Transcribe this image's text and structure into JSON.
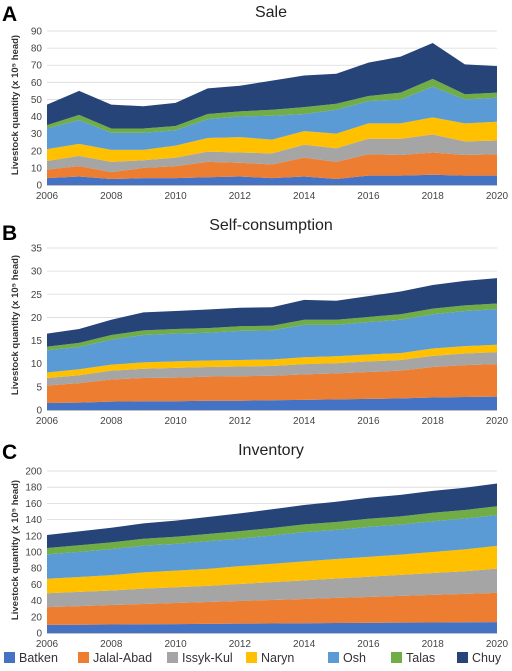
{
  "legend": [
    {
      "name": "Batken",
      "color": "#4472C4"
    },
    {
      "name": "Jalal-Abad",
      "color": "#ED7D31"
    },
    {
      "name": "Issyk-Kul",
      "color": "#A5A5A5"
    },
    {
      "name": "Naryn",
      "color": "#FFC000"
    },
    {
      "name": "Osh",
      "color": "#5B9BD5"
    },
    {
      "name": "Talas",
      "color": "#70AD47"
    },
    {
      "name": "Chuy",
      "color": "#264478"
    }
  ],
  "chart_data": [
    {
      "panel": "A",
      "type": "area",
      "stacked": true,
      "title": "Sale",
      "ylabel": "Livestock quantity (x 10⁵ head)",
      "ylim": [
        0,
        90
      ],
      "yticks": [
        0,
        10,
        20,
        30,
        40,
        50,
        60,
        70,
        80,
        90
      ],
      "xticks": [
        2006,
        2008,
        2010,
        2012,
        2014,
        2016,
        2018,
        2020
      ],
      "grid": true,
      "x": [
        2006,
        2007,
        2008,
        2009,
        2010,
        2011,
        2012,
        2013,
        2014,
        2015,
        2016,
        2017,
        2018,
        2019,
        2020
      ],
      "series": [
        {
          "name": "Batken",
          "values": [
            4,
            5,
            3.5,
            4,
            4,
            4.5,
            5,
            4,
            5,
            3.5,
            5.5,
            5.5,
            6,
            5.5,
            5.5
          ]
        },
        {
          "name": "Jalal-Abad",
          "values": [
            5,
            6,
            4,
            6,
            7,
            9,
            8,
            8,
            11,
            10,
            12.5,
            12,
            13,
            12,
            12.5
          ]
        },
        {
          "name": "Issyk-Kul",
          "values": [
            5,
            6,
            6,
            4.5,
            5,
            6,
            6,
            6.5,
            7.5,
            8,
            9,
            9.5,
            10.5,
            8,
            8
          ]
        },
        {
          "name": "Naryn",
          "values": [
            7,
            7,
            7,
            6,
            7,
            8,
            9,
            8,
            8,
            8.5,
            9,
            9,
            10,
            10.5,
            11
          ]
        },
        {
          "name": "Osh",
          "values": [
            12,
            14,
            10,
            10,
            9,
            11,
            12,
            14,
            10,
            14,
            13,
            14,
            18,
            14,
            14
          ]
        },
        {
          "name": "Talas",
          "values": [
            2,
            3,
            2.5,
            2.5,
            2.5,
            3,
            3,
            3.5,
            4,
            3.5,
            3,
            4,
            4.5,
            3,
            3
          ]
        },
        {
          "name": "Chuy",
          "values": [
            12,
            14,
            14,
            13,
            13.5,
            15,
            15,
            17,
            18.5,
            17.5,
            19.5,
            21,
            21,
            17.5,
            15.5
          ]
        }
      ]
    },
    {
      "panel": "B",
      "type": "area",
      "stacked": true,
      "title": "Self-consumption",
      "ylabel": "Livestock quantity (x 10⁵ head)",
      "ylim": [
        0,
        35
      ],
      "yticks": [
        0,
        5,
        10,
        15,
        20,
        25,
        30,
        35
      ],
      "xticks": [
        2006,
        2008,
        2010,
        2012,
        2014,
        2016,
        2018,
        2020
      ],
      "grid": true,
      "x": [
        2006,
        2007,
        2008,
        2009,
        2010,
        2011,
        2012,
        2013,
        2014,
        2015,
        2016,
        2017,
        2018,
        2019,
        2020
      ],
      "series": [
        {
          "name": "Batken",
          "values": [
            1.5,
            1.6,
            1.8,
            1.9,
            1.9,
            2.0,
            2.0,
            2.1,
            2.2,
            2.3,
            2.4,
            2.5,
            2.7,
            2.8,
            2.9
          ]
        },
        {
          "name": "Jalal-Abad",
          "values": [
            3.8,
            4.2,
            4.8,
            5.0,
            5.1,
            5.2,
            5.3,
            5.3,
            5.5,
            5.6,
            5.8,
            6.0,
            6.6,
            6.9,
            7.0
          ]
        },
        {
          "name": "Issyk-Kul",
          "values": [
            1.6,
            1.7,
            1.9,
            2.0,
            2.1,
            2.1,
            2.1,
            2.1,
            2.2,
            2.2,
            2.3,
            2.3,
            2.4,
            2.5,
            2.6
          ]
        },
        {
          "name": "Naryn",
          "values": [
            1.2,
            1.3,
            1.3,
            1.4,
            1.4,
            1.4,
            1.4,
            1.4,
            1.5,
            1.5,
            1.5,
            1.5,
            1.6,
            1.6,
            1.6
          ]
        },
        {
          "name": "Osh",
          "values": [
            4.8,
            4.8,
            5.4,
            5.9,
            6.0,
            6.0,
            6.3,
            6.3,
            7.0,
            6.8,
            7.0,
            7.2,
            7.4,
            7.6,
            7.7
          ]
        },
        {
          "name": "Talas",
          "values": [
            0.8,
            0.9,
            1.0,
            1.0,
            1.0,
            1.0,
            1.0,
            1.0,
            1.1,
            1.1,
            1.1,
            1.2,
            1.2,
            1.2,
            1.2
          ]
        },
        {
          "name": "Chuy",
          "values": [
            2.8,
            3.0,
            3.3,
            3.9,
            3.9,
            4.0,
            4.0,
            4.0,
            4.3,
            4.1,
            4.5,
            4.9,
            5.1,
            5.3,
            5.5
          ]
        }
      ]
    },
    {
      "panel": "C",
      "type": "area",
      "stacked": true,
      "title": "Inventory",
      "ylabel": "Livestock quantity (x 10⁵ head)",
      "ylim": [
        0,
        200
      ],
      "yticks": [
        0,
        20,
        40,
        60,
        80,
        100,
        120,
        140,
        160,
        180,
        200
      ],
      "xticks": [
        2006,
        2008,
        2010,
        2012,
        2014,
        2016,
        2018,
        2020
      ],
      "grid": true,
      "x": [
        2006,
        2007,
        2008,
        2009,
        2010,
        2011,
        2012,
        2013,
        2014,
        2015,
        2016,
        2017,
        2018,
        2019,
        2020
      ],
      "series": [
        {
          "name": "Batken",
          "values": [
            10,
            10.2,
            10.5,
            10.8,
            11,
            11.2,
            11.5,
            11.8,
            12,
            12.3,
            12.5,
            12.8,
            13,
            13.3,
            13.5
          ]
        },
        {
          "name": "Jalal-Abad",
          "values": [
            22,
            23,
            24,
            25,
            26,
            27,
            28,
            29,
            30,
            31,
            32,
            33,
            34,
            35,
            36
          ]
        },
        {
          "name": "Issyk-Kul",
          "values": [
            17,
            17.5,
            18,
            19,
            19.5,
            20,
            21,
            22,
            23,
            24,
            25,
            26,
            27,
            28,
            30
          ]
        },
        {
          "name": "Naryn",
          "values": [
            18,
            18.5,
            19,
            20,
            20.5,
            21,
            22,
            22.5,
            23.5,
            24,
            24.5,
            25,
            26,
            27,
            28
          ]
        },
        {
          "name": "Osh",
          "values": [
            30,
            31,
            32,
            33,
            33,
            34,
            34,
            35,
            36,
            36,
            37,
            37,
            38,
            38,
            38
          ]
        },
        {
          "name": "Talas",
          "values": [
            8,
            8.2,
            8.4,
            8.6,
            8.8,
            9,
            9.2,
            9.4,
            9.6,
            9.8,
            10,
            10.2,
            10.4,
            10.6,
            11
          ]
        },
        {
          "name": "Chuy",
          "values": [
            16,
            17,
            18,
            19,
            20,
            21,
            22,
            23,
            24,
            25,
            26,
            26.5,
            27,
            27.5,
            28
          ]
        }
      ]
    }
  ]
}
